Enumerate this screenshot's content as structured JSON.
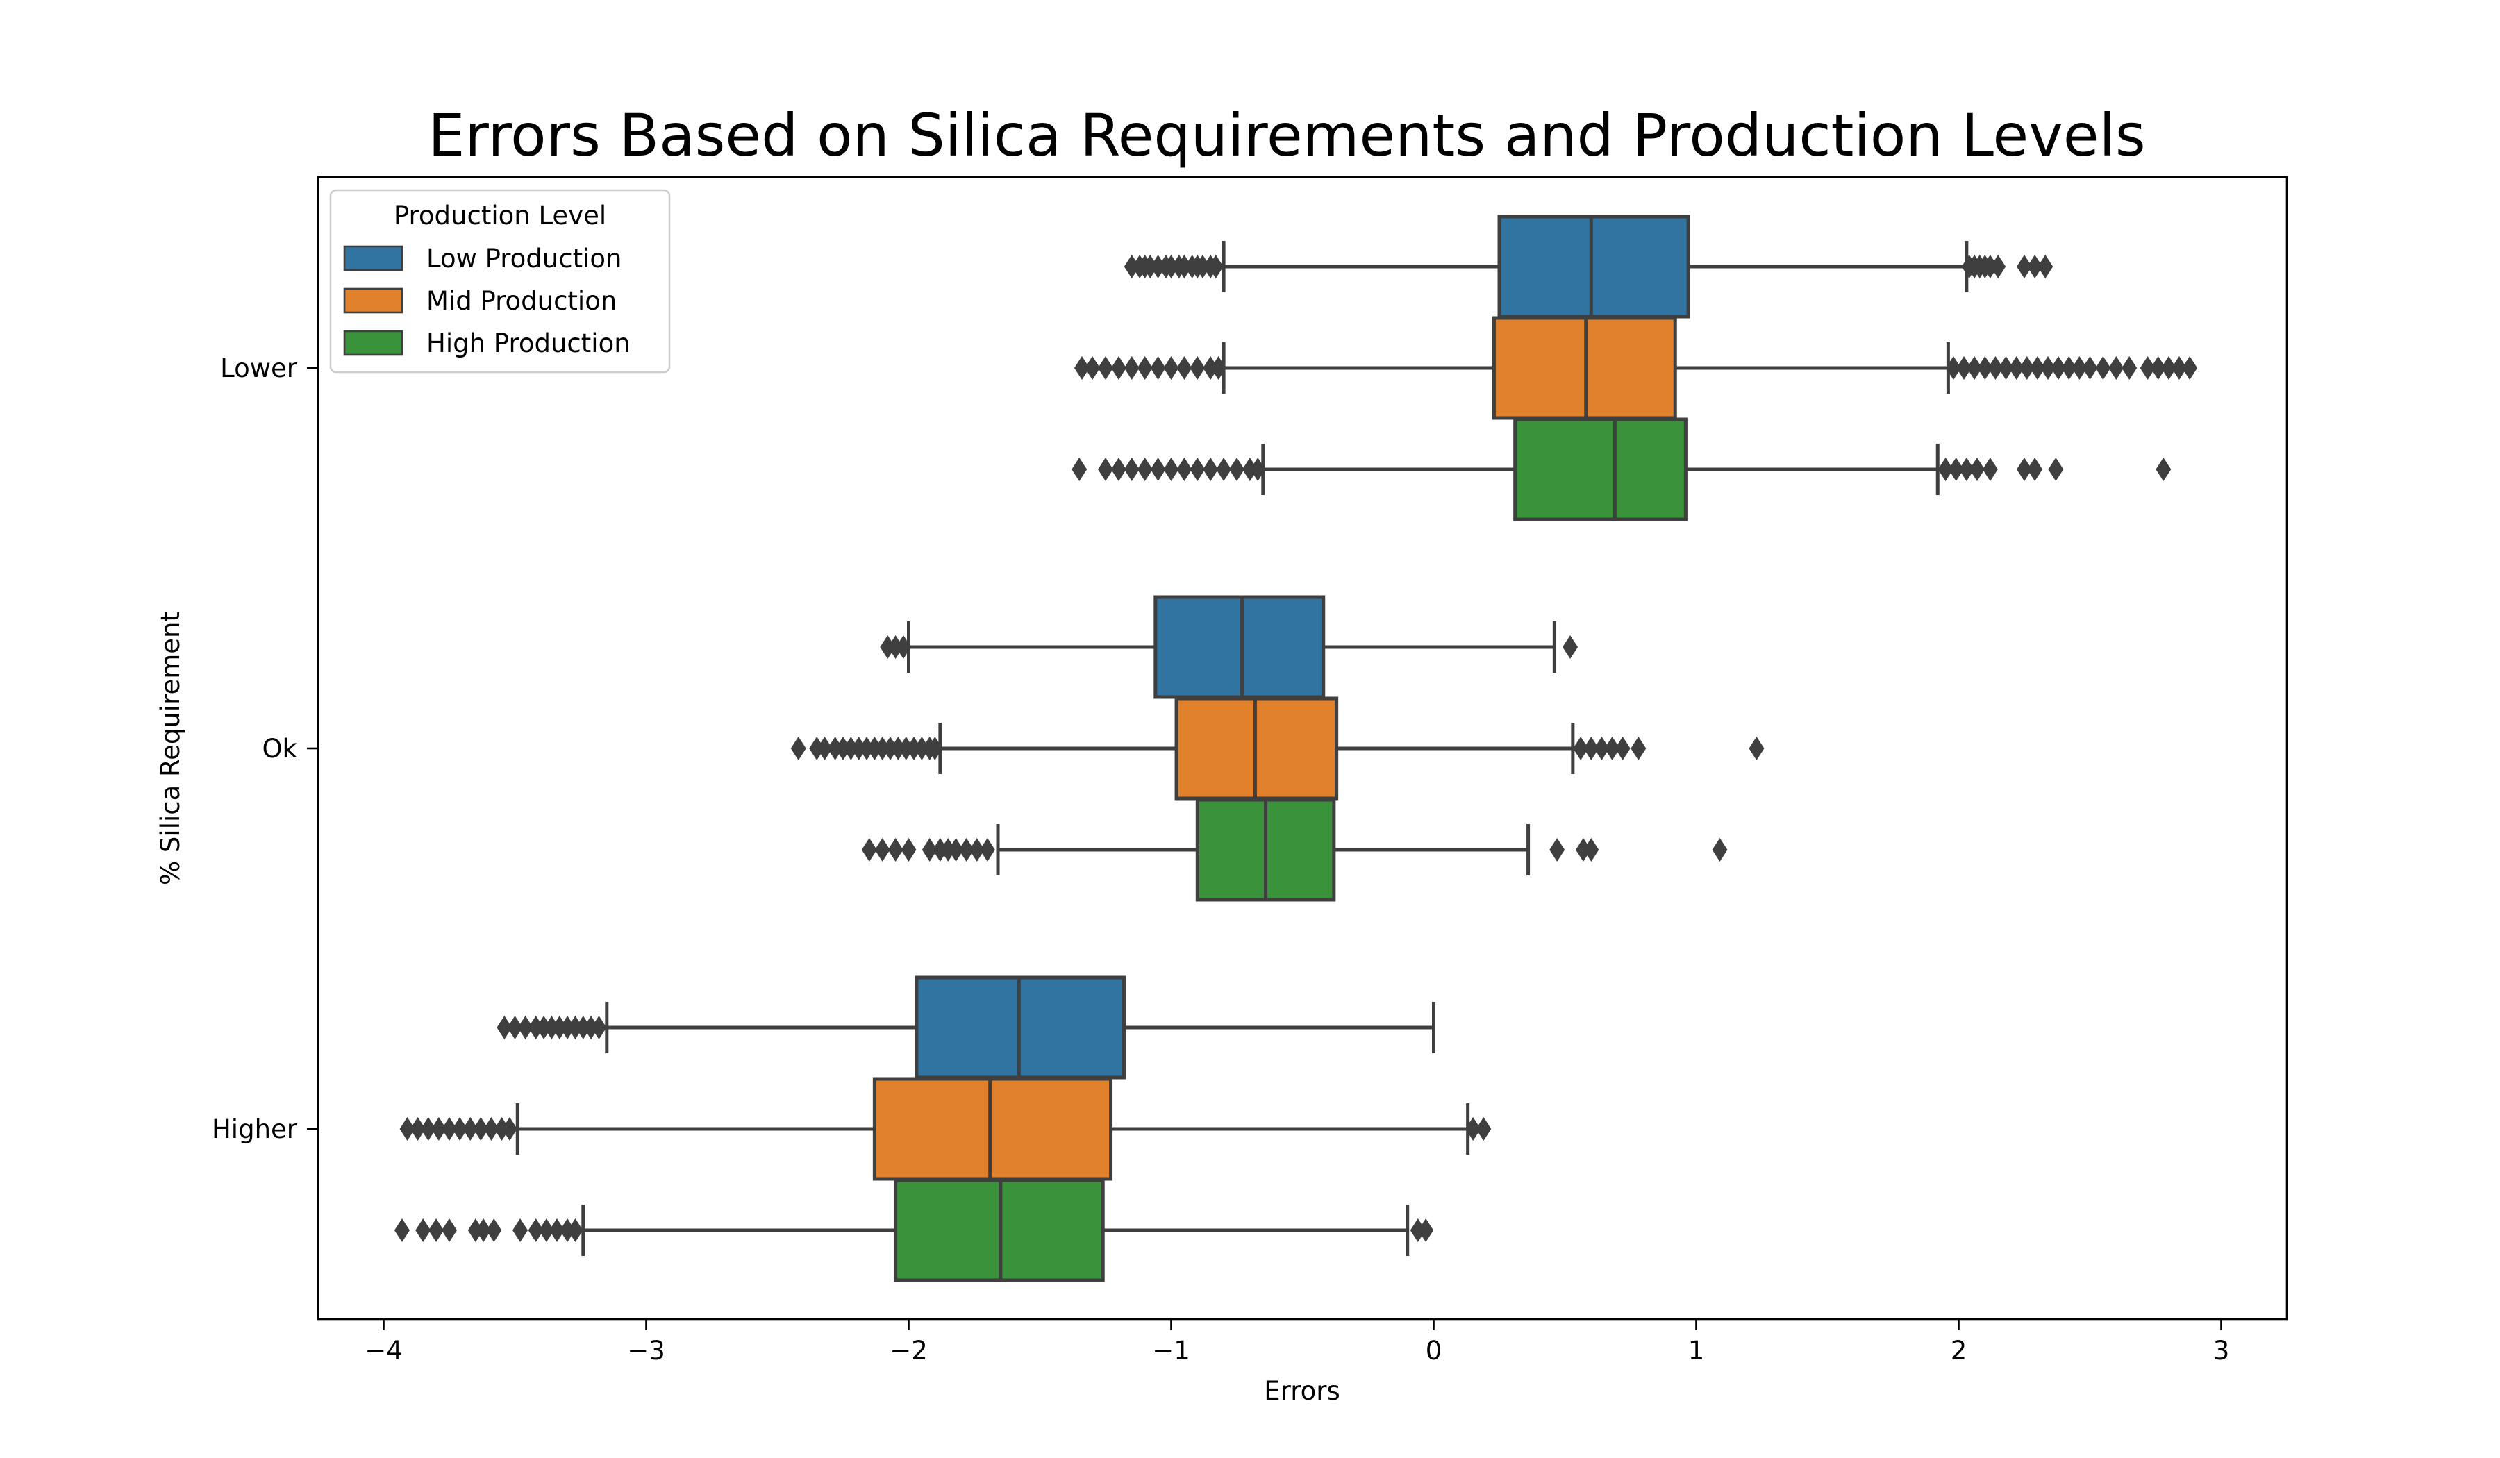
{
  "chart_data": {
    "type": "boxplot",
    "orientation": "horizontal",
    "title": "Errors Based on Silica Requirements and Production Levels",
    "xlabel": "Errors",
    "ylabel": "% Silica Requirement",
    "xlim": [
      -4.25,
      3.25
    ],
    "xticks": [
      -4,
      -3,
      -2,
      -1,
      0,
      1,
      2,
      3
    ],
    "xtick_labels": [
      "−4",
      "−3",
      "−2",
      "−1",
      "0",
      "1",
      "2",
      "3"
    ],
    "categories": [
      "Lower",
      "Ok",
      "Higher"
    ],
    "legend": {
      "title": "Production Level",
      "placement": "top-left",
      "entries": [
        "Low Production",
        "Mid Production",
        "High Production"
      ]
    },
    "colors": {
      "Low Production": "#3274a1",
      "Mid Production": "#e1812c",
      "High Production": "#3a923a",
      "edge": "#3f3f3f"
    },
    "series": [
      {
        "name": "Low Production",
        "boxes": [
          {
            "category": "Lower",
            "whisker_low": -0.8,
            "q1": 0.25,
            "median": 0.6,
            "q3": 0.97,
            "whisker_high": 2.03,
            "outliers": [
              -1.15,
              -1.12,
              -1.1,
              -1.08,
              -1.05,
              -1.02,
              -1.0,
              -0.97,
              -0.95,
              -0.92,
              -0.9,
              -0.88,
              -0.85,
              -0.83,
              2.04,
              2.06,
              2.08,
              2.1,
              2.12,
              2.15,
              2.25,
              2.29,
              2.33
            ]
          },
          {
            "category": "Ok",
            "whisker_low": -2.0,
            "q1": -1.06,
            "median": -0.73,
            "q3": -0.42,
            "whisker_high": 0.46,
            "outliers": [
              -2.08,
              -2.05,
              -2.02,
              0.52
            ]
          },
          {
            "category": "Higher",
            "whisker_low": -3.15,
            "q1": -1.97,
            "median": -1.58,
            "q3": -1.18,
            "whisker_high": 0.0,
            "outliers": [
              -3.54,
              -3.5,
              -3.46,
              -3.42,
              -3.39,
              -3.36,
              -3.33,
              -3.3,
              -3.27,
              -3.24,
              -3.21,
              -3.18
            ]
          }
        ]
      },
      {
        "name": "Mid Production",
        "boxes": [
          {
            "category": "Lower",
            "whisker_low": -0.8,
            "q1": 0.23,
            "median": 0.58,
            "q3": 0.92,
            "whisker_high": 1.96,
            "outliers": [
              -1.34,
              -1.3,
              -1.25,
              -1.2,
              -1.15,
              -1.1,
              -1.05,
              -1.0,
              -0.95,
              -0.9,
              -0.85,
              -0.82,
              1.98,
              2.02,
              2.06,
              2.1,
              2.14,
              2.18,
              2.22,
              2.26,
              2.3,
              2.34,
              2.38,
              2.42,
              2.46,
              2.5,
              2.55,
              2.6,
              2.65,
              2.72,
              2.76,
              2.8,
              2.84,
              2.88
            ]
          },
          {
            "category": "Ok",
            "whisker_low": -1.88,
            "q1": -0.98,
            "median": -0.68,
            "q3": -0.37,
            "whisker_high": 0.53,
            "outliers": [
              -2.42,
              -2.35,
              -2.32,
              -2.28,
              -2.25,
              -2.22,
              -2.19,
              -2.16,
              -2.13,
              -2.1,
              -2.07,
              -2.04,
              -2.01,
              -1.98,
              -1.95,
              -1.92,
              -1.9,
              0.56,
              0.6,
              0.64,
              0.68,
              0.72,
              0.78,
              1.23
            ]
          },
          {
            "category": "Higher",
            "whisker_low": -3.49,
            "q1": -2.13,
            "median": -1.69,
            "q3": -1.23,
            "whisker_high": 0.13,
            "outliers": [
              -3.91,
              -3.87,
              -3.83,
              -3.79,
              -3.75,
              -3.71,
              -3.67,
              -3.63,
              -3.59,
              -3.55,
              -3.52,
              0.15,
              0.19
            ]
          }
        ]
      },
      {
        "name": "High Production",
        "boxes": [
          {
            "category": "Lower",
            "whisker_low": -0.65,
            "q1": 0.31,
            "median": 0.69,
            "q3": 0.96,
            "whisker_high": 1.92,
            "outliers": [
              -1.35,
              -1.25,
              -1.2,
              -1.15,
              -1.1,
              -1.05,
              -1.0,
              -0.95,
              -0.9,
              -0.85,
              -0.8,
              -0.75,
              -0.7,
              -0.67,
              1.95,
              1.99,
              2.03,
              2.07,
              2.12,
              2.25,
              2.29,
              2.37,
              2.78
            ]
          },
          {
            "category": "Ok",
            "whisker_low": -1.66,
            "q1": -0.9,
            "median": -0.64,
            "q3": -0.38,
            "whisker_high": 0.36,
            "outliers": [
              -2.15,
              -2.1,
              -2.05,
              -2.0,
              -1.92,
              -1.88,
              -1.85,
              -1.82,
              -1.78,
              -1.74,
              -1.7,
              0.47,
              0.57,
              0.6,
              1.09
            ]
          },
          {
            "category": "Higher",
            "whisker_low": -3.24,
            "q1": -2.05,
            "median": -1.65,
            "q3": -1.26,
            "whisker_high": -0.1,
            "outliers": [
              -3.93,
              -3.85,
              -3.8,
              -3.75,
              -3.65,
              -3.62,
              -3.58,
              -3.48,
              -3.42,
              -3.38,
              -3.34,
              -3.3,
              -3.27,
              -0.06,
              -0.03
            ]
          }
        ]
      }
    ]
  }
}
